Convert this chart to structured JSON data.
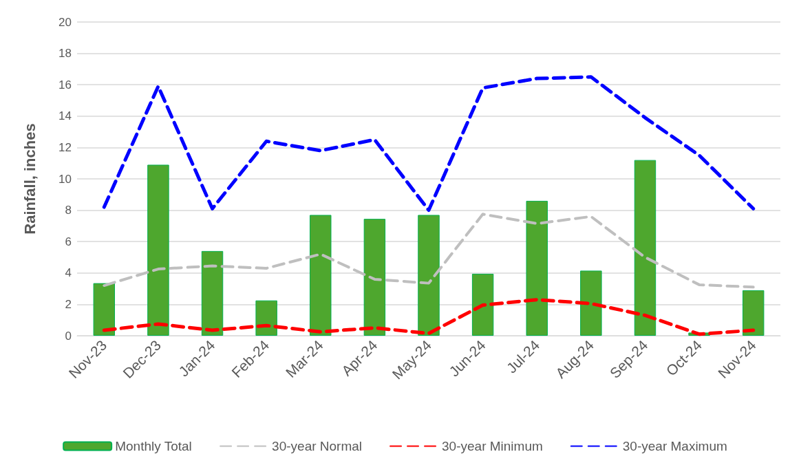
{
  "chart_data": {
    "type": "bar",
    "ylabel": "Rainfall, inches",
    "categories": [
      "Nov-23",
      "Dec-23",
      "Jan-24",
      "Feb-24",
      "Mar-24",
      "Apr-24",
      "May-24",
      "Jun-24",
      "Jul-24",
      "Aug-24",
      "Sep-24",
      "Oct-24",
      "Nov-24"
    ],
    "series": [
      {
        "name": "Monthly Total",
        "color": "#4ea72e",
        "values": [
          3.35,
          10.9,
          5.4,
          2.25,
          7.7,
          7.45,
          7.7,
          3.95,
          8.6,
          4.15,
          11.2,
          0.2,
          2.9
        ]
      },
      {
        "name": "30-year Normal",
        "type": "line",
        "color": "#bfbfbf",
        "line_style": "dashed",
        "values": [
          3.2,
          4.25,
          4.45,
          4.3,
          5.2,
          3.6,
          3.35,
          7.75,
          7.15,
          7.6,
          5.0,
          3.25,
          3.1
        ]
      },
      {
        "name": "30-year Minimum",
        "type": "line",
        "color": "#ff0000",
        "line_style": "dashed",
        "values": [
          0.35,
          0.75,
          0.35,
          0.65,
          0.25,
          0.5,
          0.15,
          1.95,
          2.3,
          2.05,
          1.3,
          0.1,
          0.35
        ]
      },
      {
        "name": "30-year Maximum",
        "type": "line",
        "color": "#0000ff",
        "line_style": "dashed",
        "values": [
          8.2,
          15.9,
          8.1,
          12.4,
          11.8,
          12.5,
          8.0,
          15.8,
          16.4,
          16.5,
          13.9,
          11.5,
          8.1
        ]
      }
    ],
    "ylim": [
      0,
      20
    ],
    "yticks": [
      0,
      2,
      4,
      6,
      8,
      10,
      12,
      14,
      16,
      18,
      20
    ],
    "grid": "y",
    "legend": "bottom",
    "marker": "none"
  }
}
